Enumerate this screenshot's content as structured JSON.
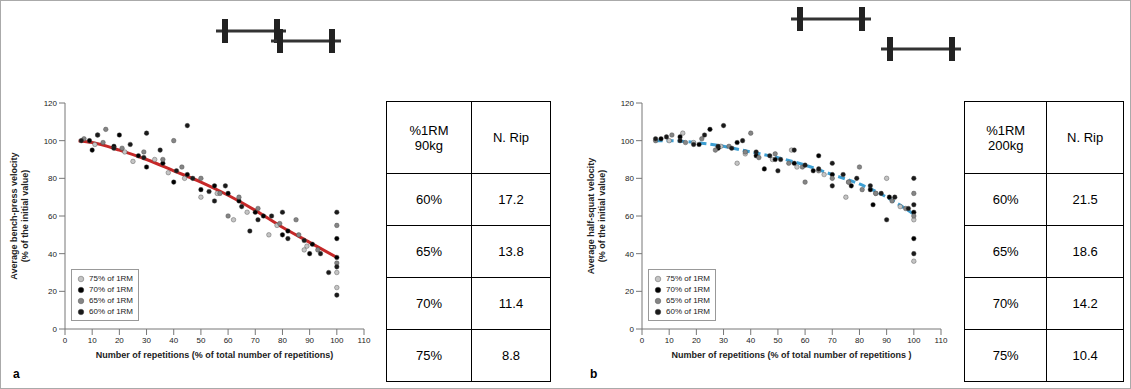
{
  "chart_data": [
    {
      "label": "a",
      "type": "scatter",
      "x_label": "Number of repetitions (% of total number of repetitions)",
      "y_label": "Average bench-press velocity (% of the initial value)",
      "xlim": [
        0,
        110
      ],
      "xticks": [
        0,
        10,
        20,
        30,
        40,
        50,
        60,
        70,
        80,
        90,
        100,
        110
      ],
      "ylim": [
        0,
        120
      ],
      "yticks": [
        0,
        20,
        40,
        60,
        80,
        100,
        120
      ],
      "grid": false,
      "legend": "lower left",
      "series": [
        {
          "name": "75% of 1RM",
          "type": "scatter",
          "color": "#c4c4c4",
          "marker": "circle",
          "x": [
            11,
            22,
            33,
            44,
            56,
            67,
            78,
            89,
            100,
            12,
            25,
            38,
            50,
            62,
            75,
            88,
            100
          ],
          "values": [
            98,
            94,
            90,
            80,
            72,
            62,
            55,
            44,
            30,
            103,
            89,
            83,
            70,
            58,
            50,
            42,
            22
          ]
        },
        {
          "name": "70% of 1RM",
          "type": "scatter",
          "color": "#000000",
          "marker": "circle",
          "x": [
            9,
            18,
            27,
            36,
            45,
            55,
            64,
            73,
            82,
            91,
            100,
            10,
            20,
            30,
            40,
            50,
            60,
            70,
            80,
            90,
            100
          ],
          "values": [
            100,
            97,
            92,
            88,
            82,
            76,
            68,
            60,
            52,
            45,
            38,
            95,
            103,
            86,
            78,
            74,
            72,
            62,
            50,
            40,
            48
          ]
        },
        {
          "name": "65% of 1RM",
          "type": "scatter",
          "color": "#858585",
          "marker": "circle",
          "x": [
            7,
            14,
            21,
            29,
            36,
            43,
            50,
            57,
            64,
            71,
            79,
            86,
            93,
            100,
            15,
            40,
            60,
            85,
            100
          ],
          "values": [
            101,
            99,
            96,
            94,
            90,
            86,
            80,
            72,
            70,
            64,
            56,
            50,
            42,
            35,
            106,
            100,
            60,
            58,
            55
          ]
        },
        {
          "name": "60% of 1RM",
          "type": "scatter",
          "color": "#1a1a1a",
          "marker": "circle",
          "x": [
            6,
            12,
            18,
            24,
            29,
            35,
            41,
            47,
            53,
            59,
            65,
            71,
            76,
            82,
            88,
            94,
            100,
            30,
            45,
            55,
            68,
            80,
            97,
            100,
            100
          ],
          "values": [
            100,
            103,
            96,
            98,
            91,
            95,
            84,
            80,
            73,
            76,
            65,
            58,
            60,
            48,
            47,
            40,
            33,
            104,
            108,
            68,
            52,
            62,
            30,
            18,
            62
          ]
        },
        {
          "type": "line",
          "color": "#c62828",
          "line_style": "solid",
          "x": [
            5,
            10,
            20,
            30,
            40,
            50,
            60,
            70,
            80,
            90,
            100
          ],
          "values": [
            100,
            99,
            95,
            90,
            84,
            78,
            71,
            63,
            54,
            46,
            38
          ]
        }
      ]
    },
    {
      "label": "b",
      "type": "scatter",
      "x_label": "Number of repetitions (% of total number of repetitions )",
      "y_label": "Average half-squat velocity (% of the initial value)",
      "xlim": [
        0,
        110
      ],
      "xticks": [
        0,
        10,
        20,
        30,
        40,
        50,
        60,
        70,
        80,
        90,
        100,
        110
      ],
      "ylim": [
        0,
        120
      ],
      "yticks": [
        0,
        20,
        40,
        60,
        80,
        100,
        120
      ],
      "grid": false,
      "legend": "lower left",
      "series": [
        {
          "name": "75% of 1RM",
          "type": "scatter",
          "color": "#c4c4c4",
          "marker": "circle",
          "x": [
            10,
            19,
            29,
            38,
            48,
            57,
            67,
            76,
            86,
            95,
            100,
            15,
            35,
            55,
            75,
            90,
            100
          ],
          "values": [
            100,
            99,
            97,
            93,
            90,
            86,
            82,
            78,
            72,
            65,
            58,
            104,
            88,
            95,
            70,
            80,
            36
          ]
        },
        {
          "name": "70% of 1RM",
          "type": "scatter",
          "color": "#000000",
          "marker": "circle",
          "x": [
            7,
            14,
            21,
            28,
            35,
            42,
            49,
            56,
            63,
            70,
            77,
            84,
            91,
            100,
            25,
            45,
            65,
            85,
            100
          ],
          "values": [
            101,
            102,
            98,
            96,
            99,
            92,
            90,
            88,
            84,
            82,
            76,
            74,
            70,
            62,
            106,
            85,
            92,
            66,
            48
          ]
        },
        {
          "name": "65% of 1RM",
          "type": "scatter",
          "color": "#858585",
          "marker": "circle",
          "x": [
            5,
            11,
            16,
            22,
            27,
            32,
            38,
            43,
            49,
            54,
            59,
            65,
            70,
            76,
            81,
            86,
            92,
            97,
            100,
            40,
            60,
            80,
            100
          ],
          "values": [
            100,
            103,
            99,
            101,
            95,
            97,
            94,
            91,
            93,
            88,
            86,
            84,
            80,
            78,
            74,
            72,
            68,
            64,
            60,
            104,
            78,
            86,
            72
          ]
        },
        {
          "name": "60% of 1RM",
          "type": "scatter",
          "color": "#1a1a1a",
          "marker": "circle",
          "x": [
            5,
            9,
            14,
            19,
            23,
            28,
            33,
            37,
            42,
            47,
            51,
            56,
            60,
            65,
            70,
            74,
            79,
            84,
            88,
            93,
            98,
            100,
            30,
            50,
            70,
            90,
            100,
            100
          ],
          "values": [
            101,
            102,
            100,
            98,
            103,
            97,
            96,
            100,
            94,
            92,
            90,
            95,
            87,
            85,
            88,
            82,
            80,
            76,
            72,
            70,
            64,
            66,
            108,
            84,
            76,
            58,
            80,
            40
          ]
        },
        {
          "type": "line",
          "color": "#3d9fd3",
          "line_style": "dashed",
          "x": [
            5,
            10,
            20,
            30,
            40,
            50,
            60,
            70,
            80,
            90,
            100
          ],
          "values": [
            100,
            100,
            99,
            97,
            94,
            91,
            87,
            82,
            77,
            70,
            61
          ]
        }
      ]
    }
  ],
  "tables": [
    {
      "columns": [
        "%1RM 90kg",
        "N. Rip"
      ],
      "rows": [
        [
          "60%",
          17.2
        ],
        [
          "65%",
          13.8
        ],
        [
          "70%",
          11.4
        ],
        [
          "75%",
          8.8
        ]
      ]
    },
    {
      "columns": [
        "%1RM 200kg",
        "N. Rip"
      ],
      "rows": [
        [
          "60%",
          21.5
        ],
        [
          "65%",
          18.6
        ],
        [
          "70%",
          14.2
        ],
        [
          "75%",
          10.4
        ]
      ]
    }
  ]
}
